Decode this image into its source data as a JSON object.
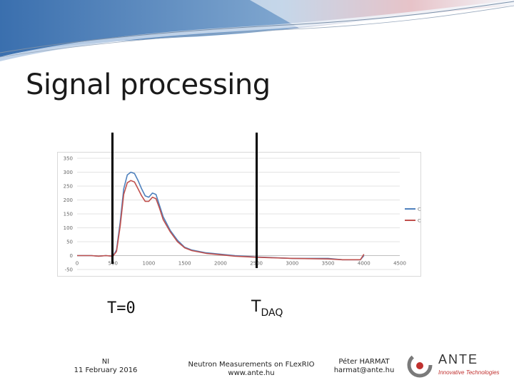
{
  "slide": {
    "title": "Signal processing",
    "markers": {
      "t0_label": "T=0",
      "tdaq_label_main": "T",
      "tdaq_label_sub": "DAQ"
    },
    "footer": {
      "left_line1": "NI",
      "left_line2": "11 February 2016",
      "center_line1": "Neutron Measurements on FLexRIO",
      "center_line2": "www.ante.hu",
      "right_line1": "Péter HARMAT",
      "right_line2": "harmat@ante.hu"
    },
    "logo": {
      "brand": "ANTE",
      "tagline": "Innovative Technologies"
    }
  },
  "chart_data": {
    "type": "line",
    "title": "",
    "xlabel": "",
    "ylabel": "",
    "xlim": [
      0,
      4500
    ],
    "ylim": [
      -50,
      350
    ],
    "x_ticks": [
      0,
      500,
      1000,
      1500,
      2000,
      2500,
      3000,
      3500,
      4000,
      4500
    ],
    "y_ticks": [
      350,
      300,
      250,
      200,
      150,
      100,
      50,
      0,
      -50
    ],
    "grid": true,
    "legend": "right",
    "x": [
      0,
      100,
      200,
      300,
      400,
      500,
      550,
      600,
      650,
      700,
      750,
      800,
      850,
      900,
      950,
      1000,
      1050,
      1100,
      1150,
      1200,
      1300,
      1400,
      1500,
      1600,
      1800,
      2000,
      2200,
      2500,
      3000,
      3500,
      3700,
      3950,
      4000
    ],
    "series": [
      {
        "name": "Channel \"A\"",
        "color": "#4f81bd",
        "values": [
          0,
          0,
          0,
          -2,
          0,
          -2,
          20,
          120,
          240,
          290,
          300,
          295,
          270,
          240,
          215,
          210,
          225,
          220,
          180,
          140,
          90,
          55,
          30,
          20,
          10,
          5,
          0,
          -5,
          -10,
          -10,
          -15,
          -15,
          0
        ]
      },
      {
        "name": "Channel \"B\"",
        "color": "#c0504d",
        "values": [
          0,
          0,
          0,
          -2,
          0,
          -2,
          15,
          105,
          220,
          262,
          270,
          265,
          240,
          215,
          195,
          195,
          210,
          205,
          170,
          130,
          85,
          50,
          28,
          18,
          8,
          3,
          -2,
          -6,
          -10,
          -12,
          -15,
          -15,
          5
        ]
      }
    ]
  }
}
